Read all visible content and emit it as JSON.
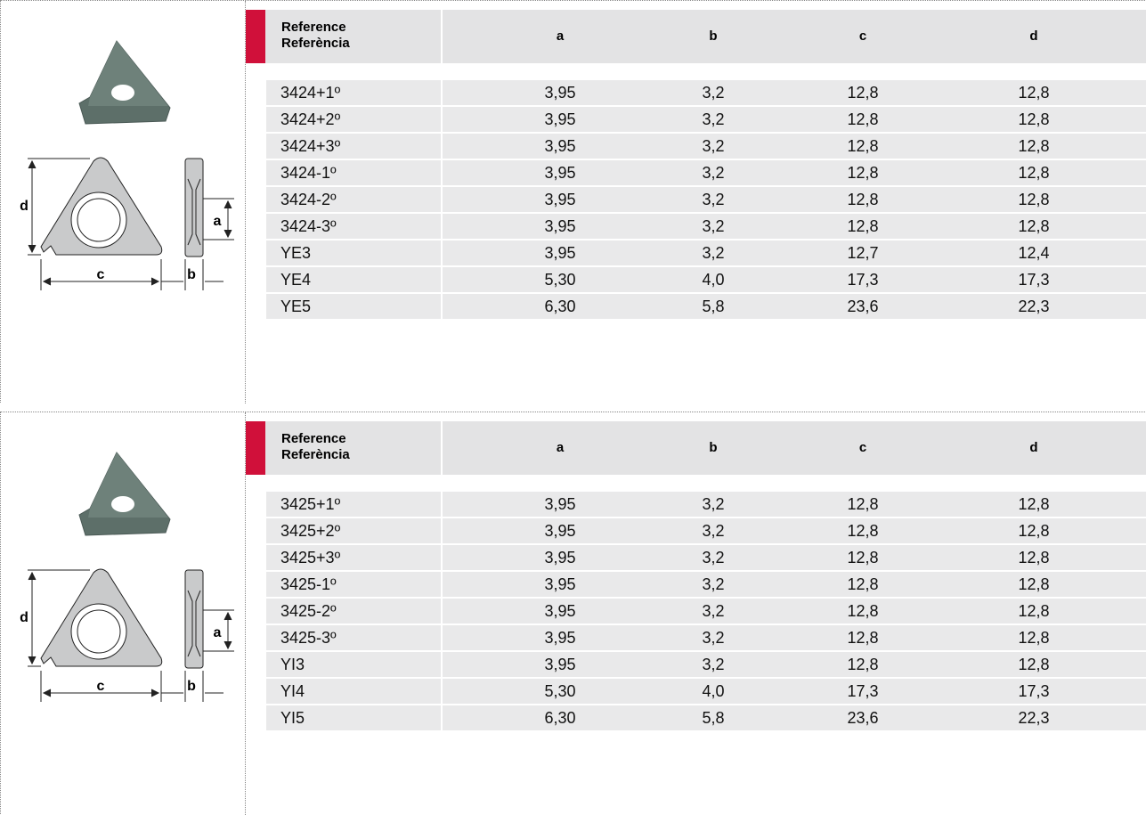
{
  "sections": [
    {
      "diagram": {
        "labels": [
          "d",
          "a",
          "c",
          "b"
        ]
      },
      "header": {
        "reference": [
          "Reference",
          "Referència"
        ],
        "columns": [
          "a",
          "b",
          "c",
          "d"
        ]
      },
      "rows": [
        [
          "3424+1º",
          "3,95",
          "3,2",
          "12,8",
          "12,8"
        ],
        [
          "3424+2º",
          "3,95",
          "3,2",
          "12,8",
          "12,8"
        ],
        [
          "3424+3º",
          "3,95",
          "3,2",
          "12,8",
          "12,8"
        ],
        [
          "3424-1º",
          "3,95",
          "3,2",
          "12,8",
          "12,8"
        ],
        [
          "3424-2º",
          "3,95",
          "3,2",
          "12,8",
          "12,8"
        ],
        [
          "3424-3º",
          "3,95",
          "3,2",
          "12,8",
          "12,8"
        ],
        [
          "YE3",
          "3,95",
          "3,2",
          "12,7",
          "12,4"
        ],
        [
          "YE4",
          "5,30",
          "4,0",
          "17,3",
          "17,3"
        ],
        [
          "YE5",
          "6,30",
          "5,8",
          "23,6",
          "22,3"
        ]
      ]
    },
    {
      "diagram": {
        "labels": [
          "d",
          "a",
          "c",
          "b"
        ]
      },
      "header": {
        "reference": [
          "Reference",
          "Referència"
        ],
        "columns": [
          "a",
          "b",
          "c",
          "d"
        ]
      },
      "rows": [
        [
          "3425+1º",
          "3,95",
          "3,2",
          "12,8",
          "12,8"
        ],
        [
          "3425+2º",
          "3,95",
          "3,2",
          "12,8",
          "12,8"
        ],
        [
          "3425+3º",
          "3,95",
          "3,2",
          "12,8",
          "12,8"
        ],
        [
          "3425-1º",
          "3,95",
          "3,2",
          "12,8",
          "12,8"
        ],
        [
          "3425-2º",
          "3,95",
          "3,2",
          "12,8",
          "12,8"
        ],
        [
          "3425-3º",
          "3,95",
          "3,2",
          "12,8",
          "12,8"
        ],
        [
          "YI3",
          "3,95",
          "3,2",
          "12,8",
          "12,8"
        ],
        [
          "YI4",
          "5,30",
          "4,0",
          "17,3",
          "17,3"
        ],
        [
          "YI5",
          "6,30",
          "5,8",
          "23,6",
          "22,3"
        ]
      ]
    }
  ]
}
